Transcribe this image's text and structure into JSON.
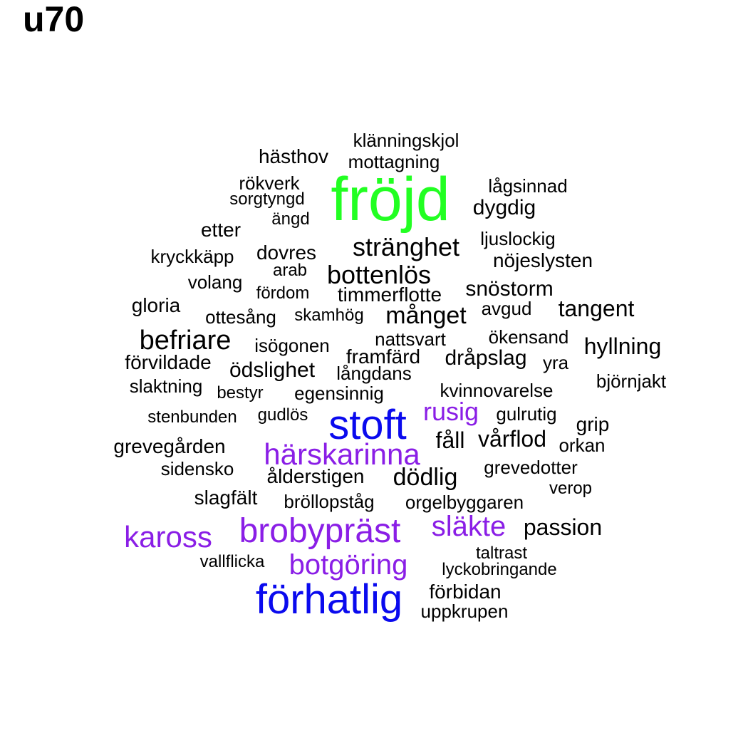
{
  "title": "u70",
  "colors": {
    "tier_green": "#22ff22",
    "tier_blue": "#0a0aee",
    "tier_purple": "#8a1ee6",
    "tier_black": "#000000"
  },
  "words": [
    {
      "text": "fröjd",
      "color": "#22ff22"
    },
    {
      "text": "stoft",
      "color": "#0a0aee"
    },
    {
      "text": "förhatlig",
      "color": "#0a0aee"
    },
    {
      "text": "brobypräst",
      "color": "#8a1ee6"
    },
    {
      "text": "härskarinna",
      "color": "#8a1ee6"
    },
    {
      "text": "kaross",
      "color": "#8a1ee6"
    },
    {
      "text": "släkte",
      "color": "#8a1ee6"
    },
    {
      "text": "botgöring",
      "color": "#8a1ee6"
    },
    {
      "text": "rusig",
      "color": "#8a1ee6"
    },
    {
      "text": "klänningskjol",
      "color": "#000000"
    },
    {
      "text": "hästhov",
      "color": "#000000"
    },
    {
      "text": "mottagning",
      "color": "#000000"
    },
    {
      "text": "rökverk",
      "color": "#000000"
    },
    {
      "text": "sorgtyngd",
      "color": "#000000"
    },
    {
      "text": "ängd",
      "color": "#000000"
    },
    {
      "text": "lågsinnad",
      "color": "#000000"
    },
    {
      "text": "dygdig",
      "color": "#000000"
    },
    {
      "text": "etter",
      "color": "#000000"
    },
    {
      "text": "ljuslockig",
      "color": "#000000"
    },
    {
      "text": "stränghet",
      "color": "#000000"
    },
    {
      "text": "kryckkäpp",
      "color": "#000000"
    },
    {
      "text": "dovres",
      "color": "#000000"
    },
    {
      "text": "nöjeslysten",
      "color": "#000000"
    },
    {
      "text": "arab",
      "color": "#000000"
    },
    {
      "text": "bottenlös",
      "color": "#000000"
    },
    {
      "text": "volang",
      "color": "#000000"
    },
    {
      "text": "snöstorm",
      "color": "#000000"
    },
    {
      "text": "fördom",
      "color": "#000000"
    },
    {
      "text": "timmerflotte",
      "color": "#000000"
    },
    {
      "text": "gloria",
      "color": "#000000"
    },
    {
      "text": "tangent",
      "color": "#000000"
    },
    {
      "text": "avgud",
      "color": "#000000"
    },
    {
      "text": "ottesång",
      "color": "#000000"
    },
    {
      "text": "skamhög",
      "color": "#000000"
    },
    {
      "text": "månget",
      "color": "#000000"
    },
    {
      "text": "befriare",
      "color": "#000000"
    },
    {
      "text": "nattsvart",
      "color": "#000000"
    },
    {
      "text": "ökensand",
      "color": "#000000"
    },
    {
      "text": "isögonen",
      "color": "#000000"
    },
    {
      "text": "hyllning",
      "color": "#000000"
    },
    {
      "text": "framfärd",
      "color": "#000000"
    },
    {
      "text": "dråpslag",
      "color": "#000000"
    },
    {
      "text": "förvildade",
      "color": "#000000"
    },
    {
      "text": "yra",
      "color": "#000000"
    },
    {
      "text": "ödslighet",
      "color": "#000000"
    },
    {
      "text": "långdans",
      "color": "#000000"
    },
    {
      "text": "björnjakt",
      "color": "#000000"
    },
    {
      "text": "slaktning",
      "color": "#000000"
    },
    {
      "text": "bestyr",
      "color": "#000000"
    },
    {
      "text": "egensinnig",
      "color": "#000000"
    },
    {
      "text": "kvinnovarelse",
      "color": "#000000"
    },
    {
      "text": "stenbunden",
      "color": "#000000"
    },
    {
      "text": "gudlös",
      "color": "#000000"
    },
    {
      "text": "gulrutig",
      "color": "#000000"
    },
    {
      "text": "grip",
      "color": "#000000"
    },
    {
      "text": "fåll",
      "color": "#000000"
    },
    {
      "text": "vårflod",
      "color": "#000000"
    },
    {
      "text": "grevegården",
      "color": "#000000"
    },
    {
      "text": "orkan",
      "color": "#000000"
    },
    {
      "text": "sidensko",
      "color": "#000000"
    },
    {
      "text": "grevedotter",
      "color": "#000000"
    },
    {
      "text": "ålderstigen",
      "color": "#000000"
    },
    {
      "text": "dödlig",
      "color": "#000000"
    },
    {
      "text": "verop",
      "color": "#000000"
    },
    {
      "text": "slagfält",
      "color": "#000000"
    },
    {
      "text": "bröllopståg",
      "color": "#000000"
    },
    {
      "text": "orgelbyggaren",
      "color": "#000000"
    },
    {
      "text": "passion",
      "color": "#000000"
    },
    {
      "text": "taltrast",
      "color": "#000000"
    },
    {
      "text": "vallflicka",
      "color": "#000000"
    },
    {
      "text": "lyckobringande",
      "color": "#000000"
    },
    {
      "text": "förbidan",
      "color": "#000000"
    },
    {
      "text": "uppkrupen",
      "color": "#000000"
    }
  ]
}
